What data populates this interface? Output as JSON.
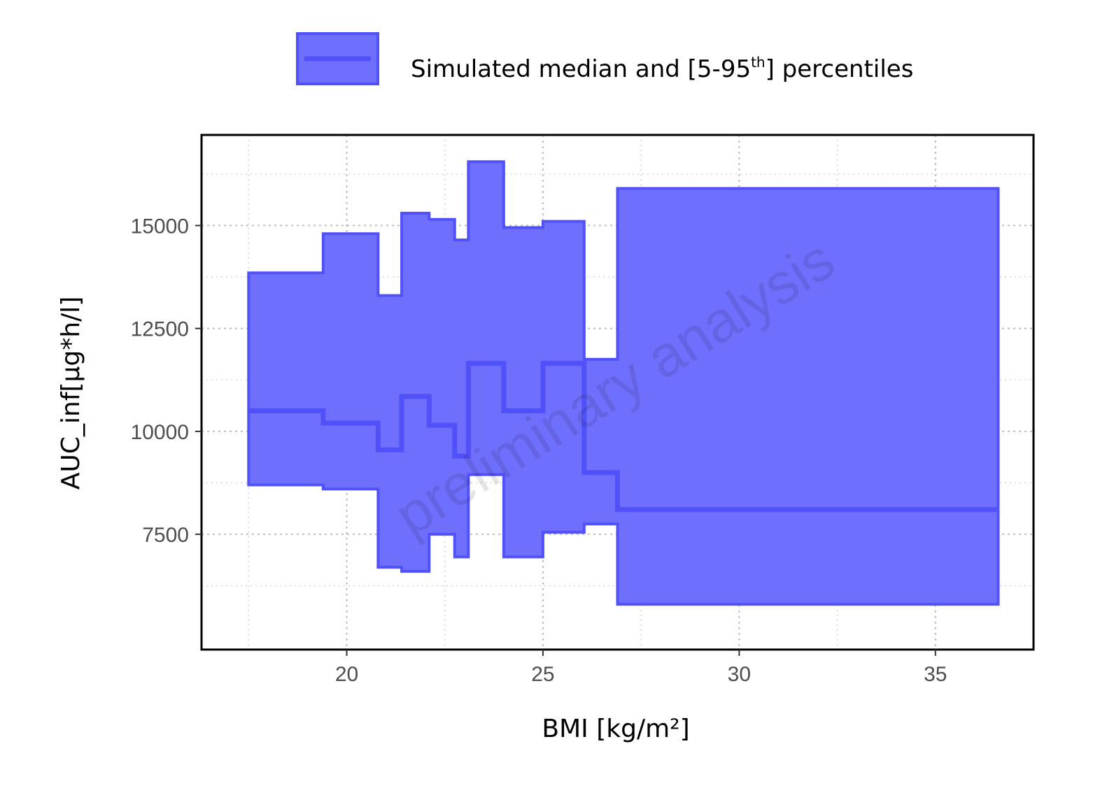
{
  "chart_data": {
    "type": "area",
    "xlabel": "BMI [kg/m²]",
    "ylabel": "AUC_inf[µg*h/l]",
    "xlim": [
      16.3,
      37.5
    ],
    "ylim": [
      4700,
      17200
    ],
    "xticks": [
      20,
      25,
      30,
      35
    ],
    "yticks": [
      7500,
      10000,
      12500,
      15000
    ],
    "x_tick_labels": [
      "20",
      "25",
      "30",
      "35"
    ],
    "y_tick_labels": [
      "7500",
      "10000",
      "12500",
      "15000"
    ],
    "grid": true,
    "legend_position": "top",
    "legend": {
      "label_main": "Simulated median and [5-95",
      "label_sup": "th",
      "label_end": "] percentiles"
    },
    "watermark": "preliminary analysis",
    "colors": {
      "fill": "#6f6ffd",
      "line": "#5151f9"
    },
    "steps": [
      {
        "x0": 17.5,
        "x1": 19.4,
        "median": 10500,
        "p5": 8700,
        "p95": 13850
      },
      {
        "x0": 19.4,
        "x1": 20.8,
        "median": 10200,
        "p5": 8600,
        "p95": 14800
      },
      {
        "x0": 20.8,
        "x1": 21.4,
        "median": 9550,
        "p5": 6700,
        "p95": 13300
      },
      {
        "x0": 21.4,
        "x1": 22.1,
        "median": 10850,
        "p5": 6600,
        "p95": 15300
      },
      {
        "x0": 22.1,
        "x1": 22.75,
        "median": 10150,
        "p5": 7500,
        "p95": 15150
      },
      {
        "x0": 22.75,
        "x1": 23.1,
        "median": 9400,
        "p5": 6950,
        "p95": 14650
      },
      {
        "x0": 23.1,
        "x1": 24.0,
        "median": 11650,
        "p5": 8950,
        "p95": 16550
      },
      {
        "x0": 24.0,
        "x1": 25.0,
        "median": 10500,
        "p5": 6950,
        "p95": 14950
      },
      {
        "x0": 25.0,
        "x1": 26.05,
        "median": 11650,
        "p5": 7550,
        "p95": 15100
      },
      {
        "x0": 26.05,
        "x1": 26.9,
        "median": 9000,
        "p5": 7750,
        "p95": 11750
      },
      {
        "x0": 26.9,
        "x1": 36.6,
        "median": 8100,
        "p5": 5800,
        "p95": 15900
      }
    ]
  }
}
